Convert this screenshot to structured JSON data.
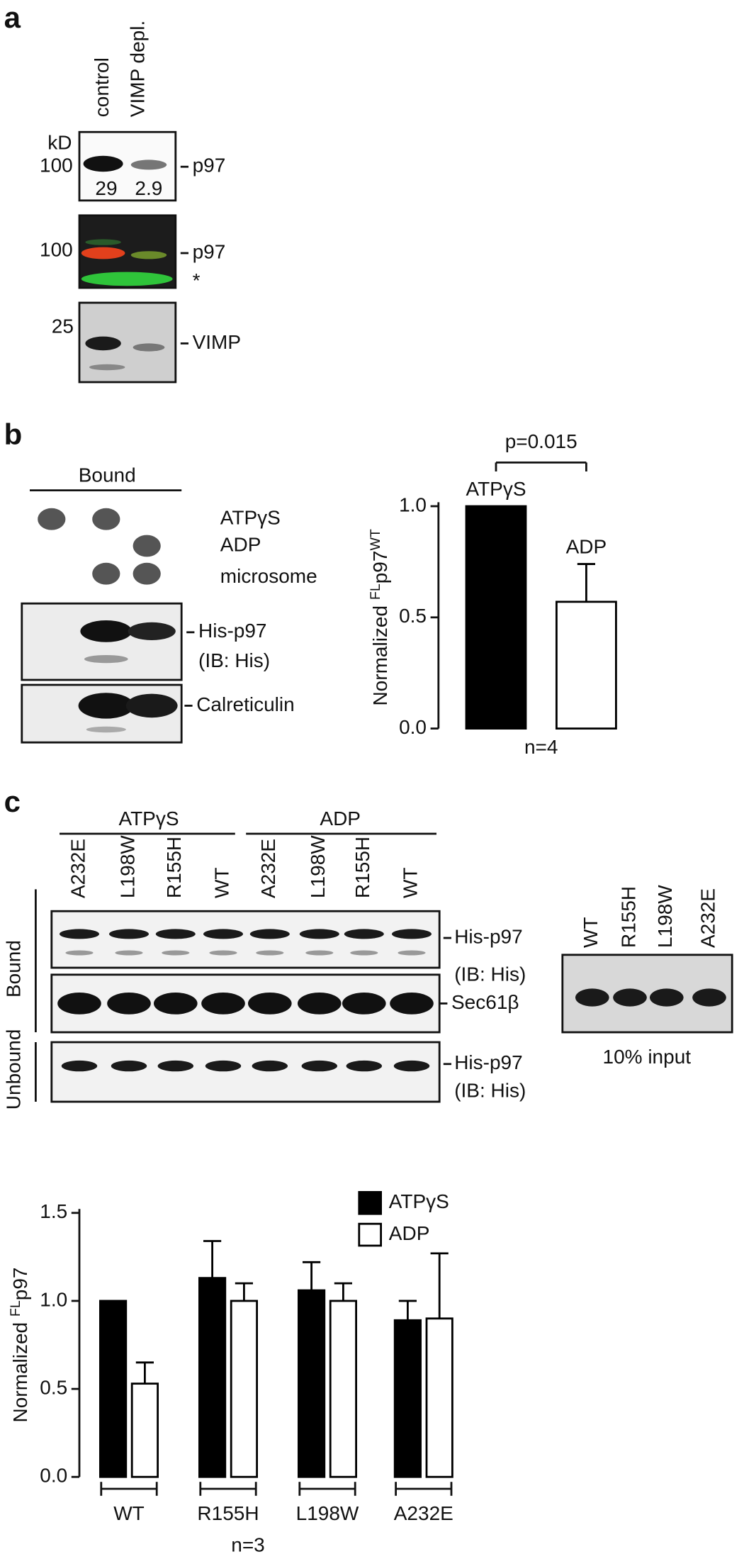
{
  "panel_a": {
    "label": "a",
    "lanes": [
      "control",
      "VIMP depl."
    ],
    "kd_unit": "kD",
    "blots": [
      {
        "mw": "100",
        "quant": [
          "29",
          "2.9"
        ],
        "target": "p97"
      },
      {
        "mw": "100",
        "target": "p97",
        "marker": "*"
      },
      {
        "mw": "25",
        "target": "VIMP"
      }
    ]
  },
  "panel_b": {
    "label": "b",
    "group": "Bound",
    "conditions": [
      "ATPγS",
      "ADP",
      "microsome"
    ],
    "blots": [
      {
        "target": "His-p97",
        "note": "(IB: His)"
      },
      {
        "target": "Calreticulin"
      }
    ]
  },
  "panel_c": {
    "label": "c",
    "groups": [
      "ATPγS",
      "ADP"
    ],
    "lanes": [
      "A232E",
      "L198W",
      "R155H",
      "WT",
      "A232E",
      "L198W",
      "R155H",
      "WT"
    ],
    "sections": [
      "Bound",
      "Unbound"
    ],
    "blots": [
      {
        "target": "His-p97",
        "note": "(IB: His)"
      },
      {
        "target": "Sec61β"
      },
      {
        "target": "His-p97",
        "note": "(IB: His)"
      }
    ],
    "input_lanes": [
      "WT",
      "R155H",
      "L198W",
      "A232E"
    ],
    "input_label": "10% input"
  },
  "chart_data": [
    {
      "type": "bar",
      "ylabel": [
        "Normalized ",
        "FL",
        "p97",
        "WT"
      ],
      "categories": [
        "ATPγS",
        "ADP"
      ],
      "values": [
        1.0,
        0.57
      ],
      "errors": [
        null,
        0.17
      ],
      "colors": [
        "#000000",
        "#ffffff"
      ],
      "ylim": [
        0,
        1.0
      ],
      "yticks": [
        {
          "value": 0,
          "label": "0.0"
        },
        {
          "value": 0.5,
          "label": "0.5"
        },
        {
          "value": 1,
          "label": "1.0"
        }
      ],
      "annotation": "p=0.015",
      "note": "n=4"
    },
    {
      "type": "grouped_bar",
      "ylabel": [
        "Normalized ",
        "FL",
        "p97"
      ],
      "categories": [
        "WT",
        "R155H",
        "L198W",
        "A232E"
      ],
      "series": [
        {
          "name": "ATPγS",
          "color": "#000000",
          "values": [
            1.0,
            1.13,
            1.06,
            0.89
          ],
          "errors": [
            null,
            0.21,
            0.16,
            0.11
          ]
        },
        {
          "name": "ADP",
          "color": "#ffffff",
          "values": [
            0.53,
            1.0,
            1.0,
            0.9
          ],
          "errors": [
            0.12,
            0.1,
            0.1,
            0.37
          ]
        }
      ],
      "ylim": [
        0,
        1.5
      ],
      "yticks": [
        {
          "value": 0,
          "label": "0.0"
        },
        {
          "value": 0.5,
          "label": "0.5"
        },
        {
          "value": 1,
          "label": "1.0"
        },
        {
          "value": 1.5,
          "label": "1.5"
        }
      ],
      "note": "n=3"
    }
  ]
}
